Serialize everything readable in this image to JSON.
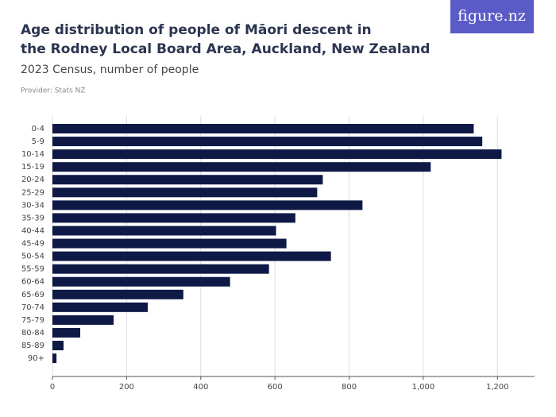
{
  "logo": "figure.nz",
  "chart_data": {
    "type": "hbar",
    "title": [
      "Age distribution of people of Māori descent in",
      "the Rodney Local Board Area, Auckland, New Zealand"
    ],
    "subtitle": "2023 Census, number of people",
    "provider": "Provider: Stats NZ",
    "categories": [
      "0-4",
      "5-9",
      "10-14",
      "15-19",
      "20-24",
      "25-29",
      "30-34",
      "35-39",
      "40-44",
      "45-49",
      "50-54",
      "55-59",
      "60-64",
      "65-69",
      "70-74",
      "75-79",
      "80-84",
      "85-89",
      "90+"
    ],
    "values": [
      1136,
      1159,
      1211,
      1020,
      729,
      714,
      836,
      655,
      603,
      631,
      751,
      584,
      479,
      353,
      257,
      165,
      75,
      30,
      11
    ],
    "color": "#0e1a45",
    "xlim": [
      0,
      1300
    ],
    "xticks": [
      0,
      200,
      400,
      600,
      800,
      {
        "value": 1000,
        "label": "1,000"
      },
      {
        "value": 1200,
        "label": "1,200"
      }
    ],
    "grid": true
  }
}
